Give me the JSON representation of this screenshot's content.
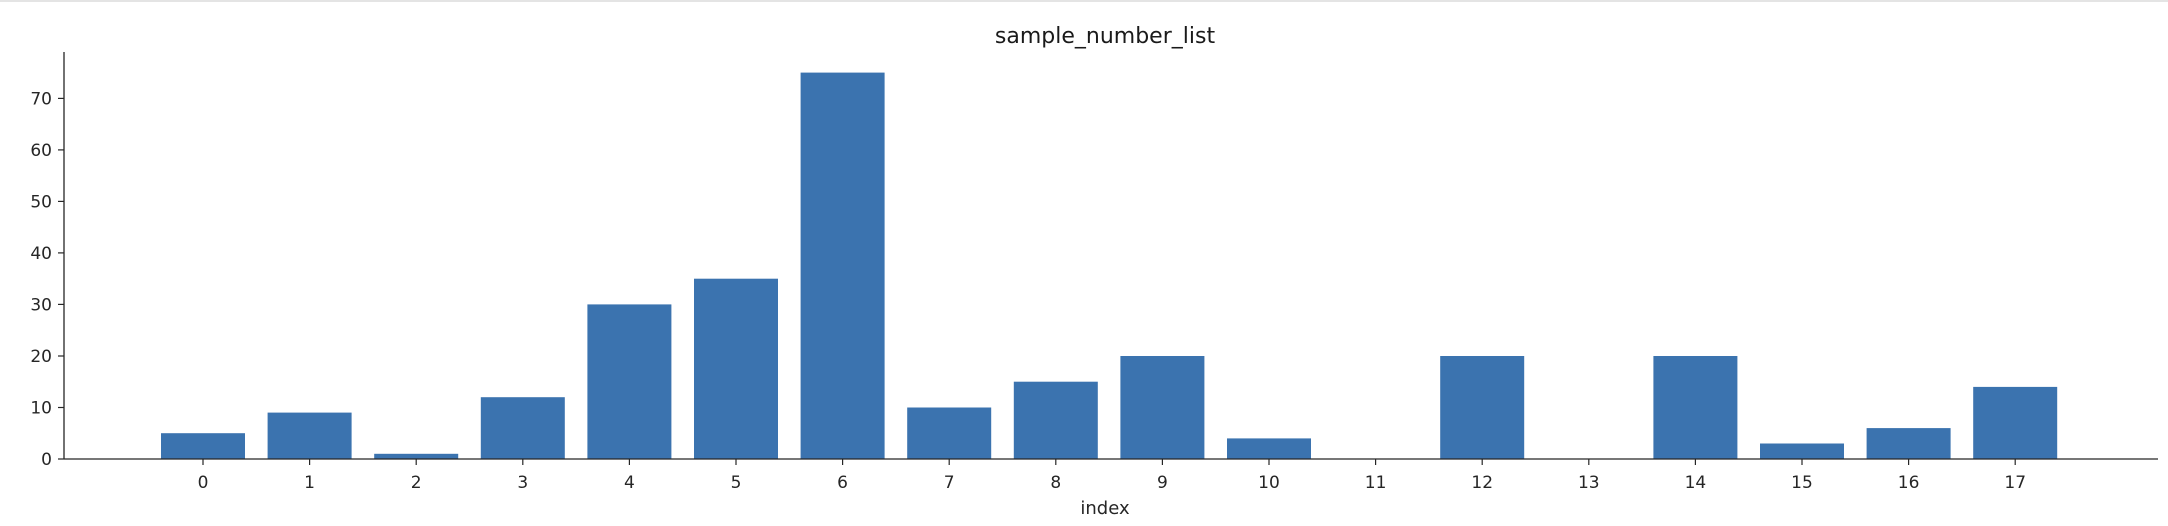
{
  "chart_data": {
    "type": "bar",
    "title": "sample_number_list",
    "xlabel": "index",
    "ylabel": "",
    "categories": [
      "0",
      "1",
      "2",
      "3",
      "4",
      "5",
      "6",
      "7",
      "8",
      "9",
      "10",
      "11",
      "12",
      "13",
      "14",
      "15",
      "16",
      "17"
    ],
    "values": [
      5,
      9,
      1,
      12,
      30,
      35,
      75,
      10,
      15,
      20,
      4,
      0,
      20,
      0,
      20,
      3,
      6,
      14
    ],
    "ylim": [
      0,
      79
    ],
    "yticks": [
      0,
      10,
      20,
      30,
      40,
      50,
      60,
      70
    ],
    "bar_color": "#3b73af",
    "axis_color": "#262626",
    "grid": false,
    "legend": false
  }
}
